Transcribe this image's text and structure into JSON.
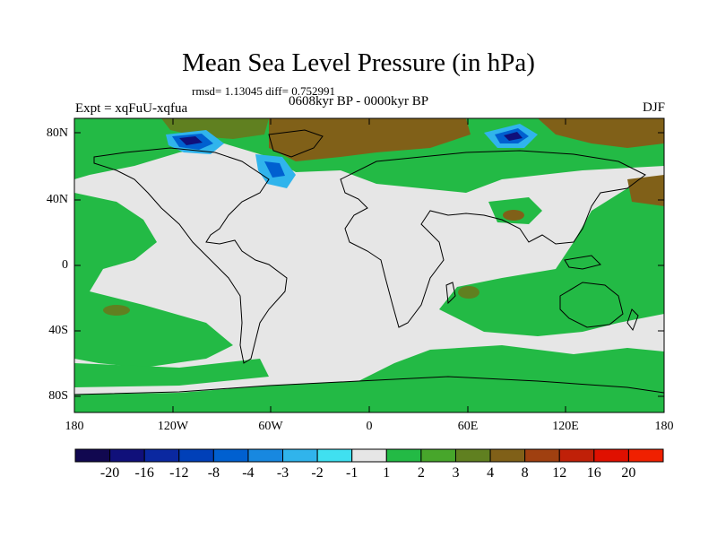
{
  "plot": {
    "title": "Mean Sea Level Pressure (in hPa)",
    "stats": "rmsd= 1.13045 diff= 0.752991",
    "period": "0608kyr BP - 0000kyr BP",
    "experiment": "Expt = xqFuU-xqfua",
    "season": "DJF"
  },
  "axes": {
    "lat_labels": [
      "80N",
      "40N",
      "0",
      "40S",
      "80S"
    ],
    "lon_labels": [
      "180",
      "120W",
      "60W",
      "0",
      "60E",
      "120E",
      "180"
    ]
  },
  "colorbar": {
    "labels": [
      "-20",
      "-16",
      "-12",
      "-8",
      "-4",
      "-3",
      "-2",
      "-1",
      "1",
      "2",
      "3",
      "4",
      "8",
      "12",
      "16",
      "20"
    ],
    "colors": [
      "#110850",
      "#10107a",
      "#0a28a0",
      "#0040b8",
      "#0060d0",
      "#1888e0",
      "#30b4ec",
      "#40e0f0",
      "#e6e6e6",
      "#23ba45",
      "#47a62b",
      "#608020",
      "#806018",
      "#a04010",
      "#c02008",
      "#e01000",
      "#f02000"
    ]
  },
  "colors": {
    "neutral": "#e6e6e6",
    "green": "#23ba45",
    "olive": "#608020",
    "brown": "#806018",
    "blue_light": "#30b4ec",
    "blue_mid": "#0060d0",
    "blue_dark": "#10107a"
  }
}
